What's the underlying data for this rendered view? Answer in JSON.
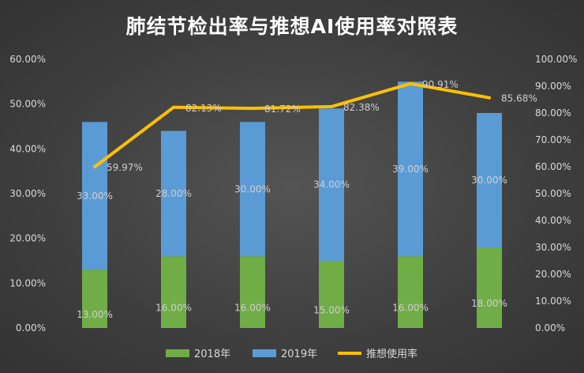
{
  "chart_data": {
    "type": "bar",
    "title": "肺结节检出率与推想AI使用率对照表",
    "categories": [
      "",
      "",
      "",
      "",
      "",
      ""
    ],
    "series": [
      {
        "name": "2018年",
        "type": "stacked-bar",
        "axis": "left",
        "color": "#70ad47",
        "values": [
          13.0,
          16.0,
          16.0,
          15.0,
          16.0,
          18.0
        ],
        "labels": [
          "13.00%",
          "16.00%",
          "16.00%",
          "15.00%",
          "16.00%",
          "18.00%"
        ]
      },
      {
        "name": "2019年",
        "type": "stacked-bar",
        "axis": "left",
        "color": "#5b9bd5",
        "values": [
          33.0,
          28.0,
          30.0,
          34.0,
          39.0,
          30.0
        ],
        "labels": [
          "33.00%",
          "28.00%",
          "30.00%",
          "34.00%",
          "39.00%",
          "30.00%"
        ]
      },
      {
        "name": "推想使用率",
        "type": "line",
        "axis": "right",
        "color": "#ffc000",
        "values": [
          59.97,
          82.13,
          81.72,
          82.38,
          90.91,
          85.68
        ],
        "labels": [
          "59.97%",
          "82.13%",
          "81.72%",
          "82.38%",
          "90.91%",
          "85.68%"
        ]
      }
    ],
    "y_left": {
      "min": 0,
      "max": 60,
      "ticks": [
        "0.00%",
        "10.00%",
        "20.00%",
        "30.00%",
        "40.00%",
        "50.00%",
        "60.00%"
      ]
    },
    "y_right": {
      "min": 0,
      "max": 100,
      "ticks": [
        "0.00%",
        "10.00%",
        "20.00%",
        "30.00%",
        "40.00%",
        "50.00%",
        "60.00%",
        "70.00%",
        "80.00%",
        "90.00%",
        "100.00%"
      ]
    },
    "grid": false,
    "legend": "bottom"
  }
}
